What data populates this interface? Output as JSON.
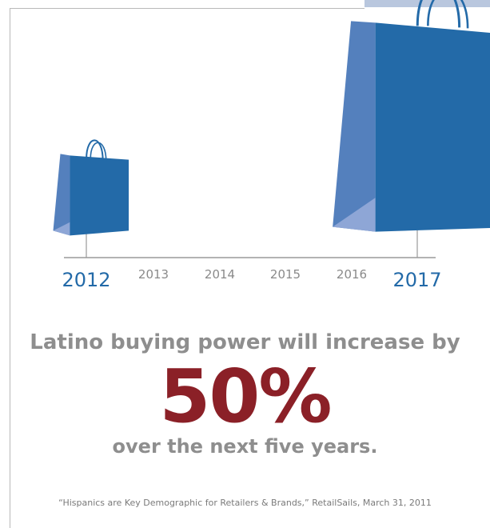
{
  "colors": {
    "bag": "#236aa8",
    "bag_side": "#5480bd",
    "bag_bottom": "#8ea6d6",
    "axis": "#9a9a9a",
    "year_highlight": "#236aa8",
    "year_muted": "#8a8a8a",
    "headline": "#8e8e8e",
    "accent": "#8b2027"
  },
  "chart_data": {
    "type": "bar",
    "categories": [
      "2012",
      "2013",
      "2014",
      "2015",
      "2016",
      "2017"
    ],
    "highlighted_categories": [
      "2012",
      "2017"
    ],
    "values": [
      1,
      null,
      null,
      null,
      null,
      1.5
    ],
    "marker": "shopping-bag"
  },
  "text": {
    "headline": "Latino buying power will increase by",
    "figure": "50%",
    "subline": "over the next five years.",
    "source": "“Hispanics are Key Demographic for Retailers & Brands,” RetailSails, March 31, 2011"
  }
}
